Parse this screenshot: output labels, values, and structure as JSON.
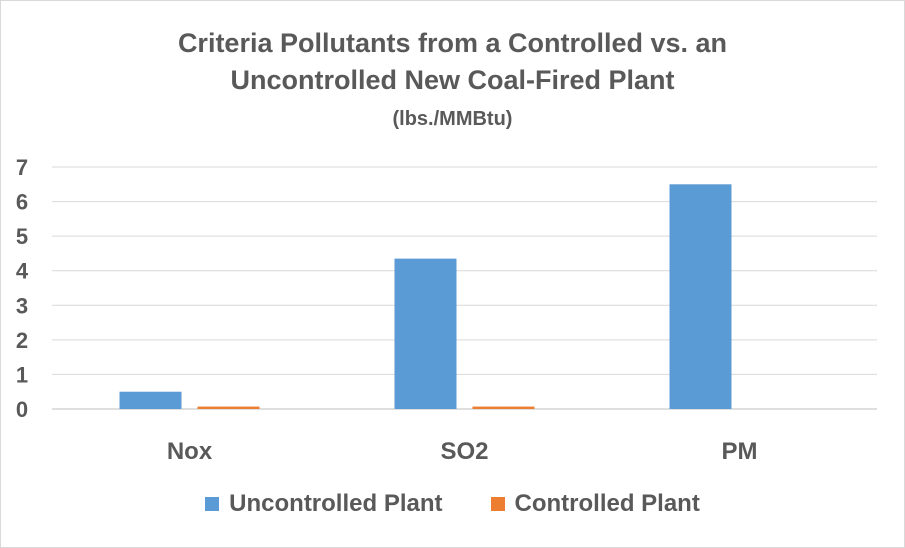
{
  "chart_data": {
    "type": "bar",
    "title": "Criteria Pollutants from a Controlled vs. an",
    "title_line2": "Uncontrolled New Coal-Fired Plant",
    "subtitle": "(lbs./MMBtu)",
    "categories": [
      "Nox",
      "SO2",
      "PM"
    ],
    "series": [
      {
        "name": "Uncontrolled Plant",
        "values": [
          0.5,
          4.35,
          6.5
        ],
        "color": "#5B9BD5"
      },
      {
        "name": "Controlled Plant",
        "values": [
          0.07,
          0.07,
          0.0
        ],
        "color": "#ED7D31"
      }
    ],
    "ylim": [
      0,
      7
    ],
    "yticks": [
      "0",
      "1",
      "2",
      "3",
      "4",
      "5",
      "6",
      "7"
    ],
    "grid": true,
    "legend_position": "bottom"
  }
}
